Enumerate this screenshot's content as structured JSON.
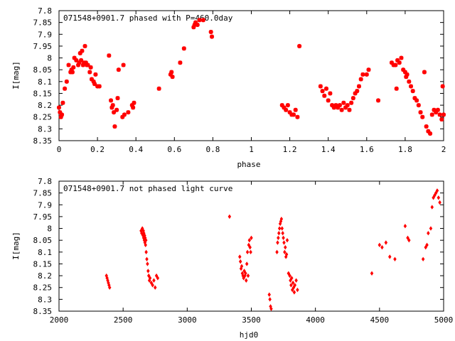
{
  "chart_data": [
    {
      "type": "scatter",
      "title": "071548+0901.7 phased with P=460.0day",
      "xlabel": "phase",
      "ylabel": "I[mag]",
      "xlim": [
        0,
        2
      ],
      "ylim": [
        7.8,
        8.35
      ],
      "y_inverted": true,
      "x_ticks": [
        "0",
        "0.2",
        "0.4",
        "0.6",
        "0.8",
        "1",
        "1.2",
        "1.4",
        "1.6",
        "1.8",
        "2"
      ],
      "y_ticks": [
        "7.8",
        "7.85",
        "7.9",
        "7.95",
        "8",
        "8.05",
        "8.1",
        "8.15",
        "8.2",
        "8.25",
        "8.3",
        "8.35"
      ],
      "grid": false,
      "marker": "star",
      "color": "#ff0000",
      "series": [
        {
          "x": [
            0.0,
            0.005,
            0.01,
            0.015,
            0.02,
            0.03,
            0.04,
            0.05,
            0.06,
            0.065,
            0.07,
            0.075,
            0.08,
            0.09,
            0.1,
            0.105,
            0.11,
            0.115,
            0.12,
            0.125,
            0.13,
            0.135,
            0.14,
            0.145,
            0.15,
            0.16,
            0.165,
            0.17,
            0.18,
            0.185,
            0.19,
            0.2,
            0.21,
            0.26,
            0.27,
            0.275,
            0.28,
            0.285,
            0.29,
            0.3,
            0.305,
            0.31,
            0.33,
            0.335,
            0.34,
            0.36,
            0.38,
            0.385,
            0.39,
            0.52,
            0.58,
            0.585,
            0.59,
            0.63,
            0.65,
            0.7,
            0.705,
            0.71,
            0.72,
            0.73,
            0.75,
            0.79,
            0.795,
            1.16,
            1.17,
            1.18,
            1.19,
            1.2,
            1.21,
            1.22,
            1.23,
            1.24,
            1.25,
            1.36,
            1.37,
            1.38,
            1.39,
            1.4,
            1.41,
            1.42,
            1.43,
            1.44,
            1.45,
            1.46,
            1.47,
            1.48,
            1.49,
            1.5,
            1.51,
            1.52,
            1.53,
            1.54,
            1.55,
            1.56,
            1.57,
            1.58,
            1.6,
            1.61,
            1.66,
            1.73,
            1.74,
            1.75,
            1.755,
            1.76,
            1.77,
            1.78,
            1.79,
            1.8,
            1.805,
            1.81,
            1.82,
            1.83,
            1.84,
            1.85,
            1.86,
            1.87,
            1.88,
            1.89,
            1.9,
            1.91,
            1.92,
            1.93,
            1.94,
            1.95,
            1.96,
            1.97,
            1.98,
            1.99,
            1.995,
            2.0
          ],
          "y": [
            8.21,
            8.23,
            8.25,
            8.24,
            8.19,
            8.13,
            8.1,
            8.03,
            8.06,
            8.05,
            8.06,
            8.04,
            8.0,
            8.01,
            8.03,
            8.02,
            7.98,
            8.01,
            7.97,
            8.03,
            8.02,
            7.95,
            8.02,
            8.03,
            8.03,
            8.06,
            8.04,
            8.09,
            8.1,
            8.11,
            8.07,
            8.12,
            8.12,
            7.99,
            8.18,
            8.21,
            8.2,
            8.23,
            8.29,
            8.22,
            8.17,
            8.05,
            8.25,
            8.03,
            8.24,
            8.23,
            8.2,
            8.21,
            8.19,
            8.13,
            8.07,
            8.06,
            8.08,
            8.02,
            7.96,
            7.87,
            7.86,
            7.85,
            7.86,
            7.84,
            7.84,
            7.89,
            7.91,
            8.2,
            8.21,
            8.22,
            8.2,
            8.23,
            8.24,
            8.24,
            8.22,
            8.25,
            7.95,
            8.12,
            8.14,
            8.16,
            8.13,
            8.18,
            8.15,
            8.2,
            8.21,
            8.2,
            8.21,
            8.2,
            8.22,
            8.19,
            8.21,
            8.2,
            8.22,
            8.19,
            8.17,
            8.15,
            8.14,
            8.12,
            8.09,
            8.07,
            8.07,
            8.05,
            8.18,
            8.02,
            8.03,
            8.03,
            8.13,
            8.01,
            8.02,
            8.0,
            8.05,
            8.06,
            8.08,
            8.07,
            8.1,
            8.12,
            8.14,
            8.17,
            8.18,
            8.2,
            8.23,
            8.25,
            8.06,
            8.29,
            8.31,
            8.32,
            8.24,
            8.22,
            8.23,
            8.22,
            8.24,
            8.26,
            8.12,
            8.24
          ]
        }
      ]
    },
    {
      "type": "scatter",
      "title": "071548+0901.7 not phased light curve",
      "xlabel": "hjd0",
      "ylabel": "I[mag]",
      "xlim": [
        2000,
        5000
      ],
      "ylim": [
        7.8,
        8.35
      ],
      "y_inverted": true,
      "x_ticks": [
        "2000",
        "2500",
        "3000",
        "3500",
        "4000",
        "4500",
        "5000"
      ],
      "y_ticks": [
        "7.8",
        "7.85",
        "7.9",
        "7.95",
        "8",
        "8.05",
        "8.1",
        "8.15",
        "8.2",
        "8.25",
        "8.3",
        "8.35"
      ],
      "grid": false,
      "marker": "diamond",
      "color": "#ff0000",
      "series": [
        {
          "x": [
            2370,
            2375,
            2380,
            2385,
            2390,
            2395,
            2640,
            2645,
            2650,
            2655,
            2658,
            2660,
            2662,
            2665,
            2668,
            2670,
            2672,
            2675,
            2678,
            2680,
            2685,
            2690,
            2695,
            2700,
            2705,
            2710,
            2720,
            2730,
            2740,
            2750,
            2760,
            2770,
            3330,
            3410,
            3415,
            3420,
            3425,
            3430,
            3435,
            3440,
            3445,
            3450,
            3455,
            3460,
            3465,
            3470,
            3475,
            3480,
            3485,
            3490,
            3495,
            3500,
            3640,
            3645,
            3650,
            3655,
            3700,
            3705,
            3710,
            3715,
            3720,
            3725,
            3730,
            3735,
            3740,
            3745,
            3750,
            3755,
            3760,
            3765,
            3770,
            3775,
            3780,
            3790,
            3800,
            3805,
            3810,
            3815,
            3820,
            3825,
            3830,
            3835,
            3840,
            3850,
            3860,
            4440,
            4500,
            4520,
            4550,
            4580,
            4620,
            4700,
            4720,
            4730,
            4840,
            4860,
            4870,
            4880,
            4900,
            4910,
            4920,
            4930,
            4940,
            4950,
            4960,
            4970
          ],
          "y": [
            8.2,
            8.21,
            8.22,
            8.23,
            8.24,
            8.25,
            8.01,
            8.02,
            8.0,
            8.03,
            8.01,
            8.04,
            8.02,
            8.05,
            8.03,
            8.06,
            8.04,
            8.07,
            8.05,
            8.1,
            8.13,
            8.15,
            8.18,
            8.2,
            8.22,
            8.21,
            8.23,
            8.24,
            8.22,
            8.25,
            8.2,
            8.21,
            7.95,
            8.12,
            8.14,
            8.17,
            8.16,
            8.19,
            8.2,
            8.21,
            8.18,
            8.2,
            8.19,
            8.22,
            8.15,
            8.1,
            8.2,
            8.07,
            8.05,
            8.08,
            8.1,
            8.04,
            8.28,
            8.3,
            8.33,
            8.34,
            8.1,
            8.06,
            8.04,
            8.02,
            8.0,
            7.98,
            7.97,
            7.96,
            8.0,
            8.02,
            8.04,
            8.06,
            8.1,
            8.08,
            8.12,
            8.11,
            8.05,
            8.19,
            8.2,
            8.22,
            8.24,
            8.21,
            8.26,
            8.23,
            8.25,
            8.27,
            8.24,
            8.22,
            8.26,
            8.19,
            8.07,
            8.08,
            8.06,
            8.12,
            8.13,
            7.99,
            8.04,
            8.05,
            8.13,
            8.08,
            8.07,
            8.02,
            8.0,
            7.91,
            7.87,
            7.86,
            7.85,
            7.84,
            7.87,
            7.89
          ]
        }
      ]
    }
  ]
}
